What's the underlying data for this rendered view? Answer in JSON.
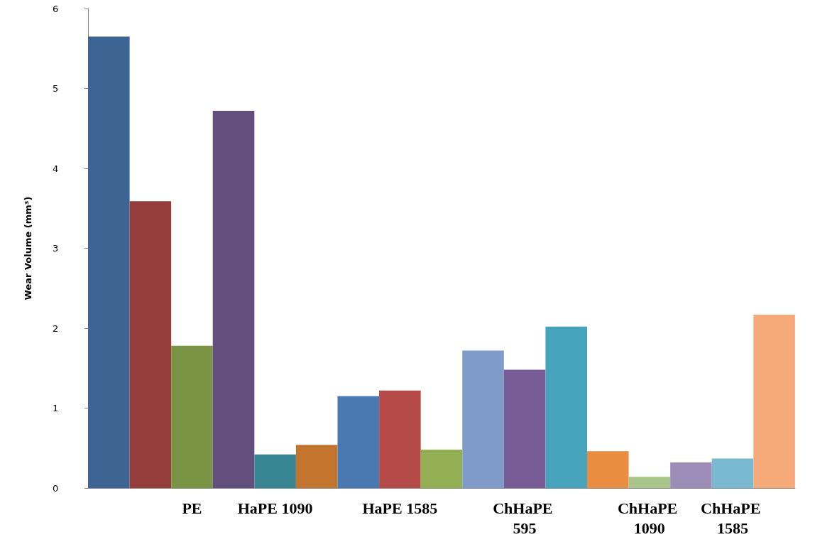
{
  "chart_data": {
    "type": "bar",
    "ylabel": "Wear Volume (mm³)",
    "categories": [
      null,
      null,
      "PE",
      null,
      "HaPE 1090",
      null,
      null,
      "HaPE 1585",
      null,
      null,
      "ChHaPE 595",
      null,
      null,
      "ChHaPE 1090",
      null,
      "ChHaPE 1585",
      null
    ],
    "values": [
      5.65,
      3.59,
      1.78,
      4.72,
      0.42,
      0.54,
      1.15,
      1.22,
      0.48,
      1.72,
      1.48,
      2.02,
      0.46,
      0.14,
      0.32,
      0.37,
      2.17
    ],
    "colors": [
      "#3e6494",
      "#953d3b",
      "#7a9445",
      "#634f7e",
      "#388694",
      "#c37530",
      "#4a79b2",
      "#b54b48",
      "#92af54",
      "#7f9cc9",
      "#775c97",
      "#47a3bb",
      "#e88d41",
      "#aac58a",
      "#9d8cb8",
      "#79b9d0",
      "#f6a979"
    ],
    "ylim": [
      0,
      6
    ],
    "yticks": [
      0,
      1,
      2,
      3,
      4,
      5,
      6
    ],
    "grid": false
  }
}
